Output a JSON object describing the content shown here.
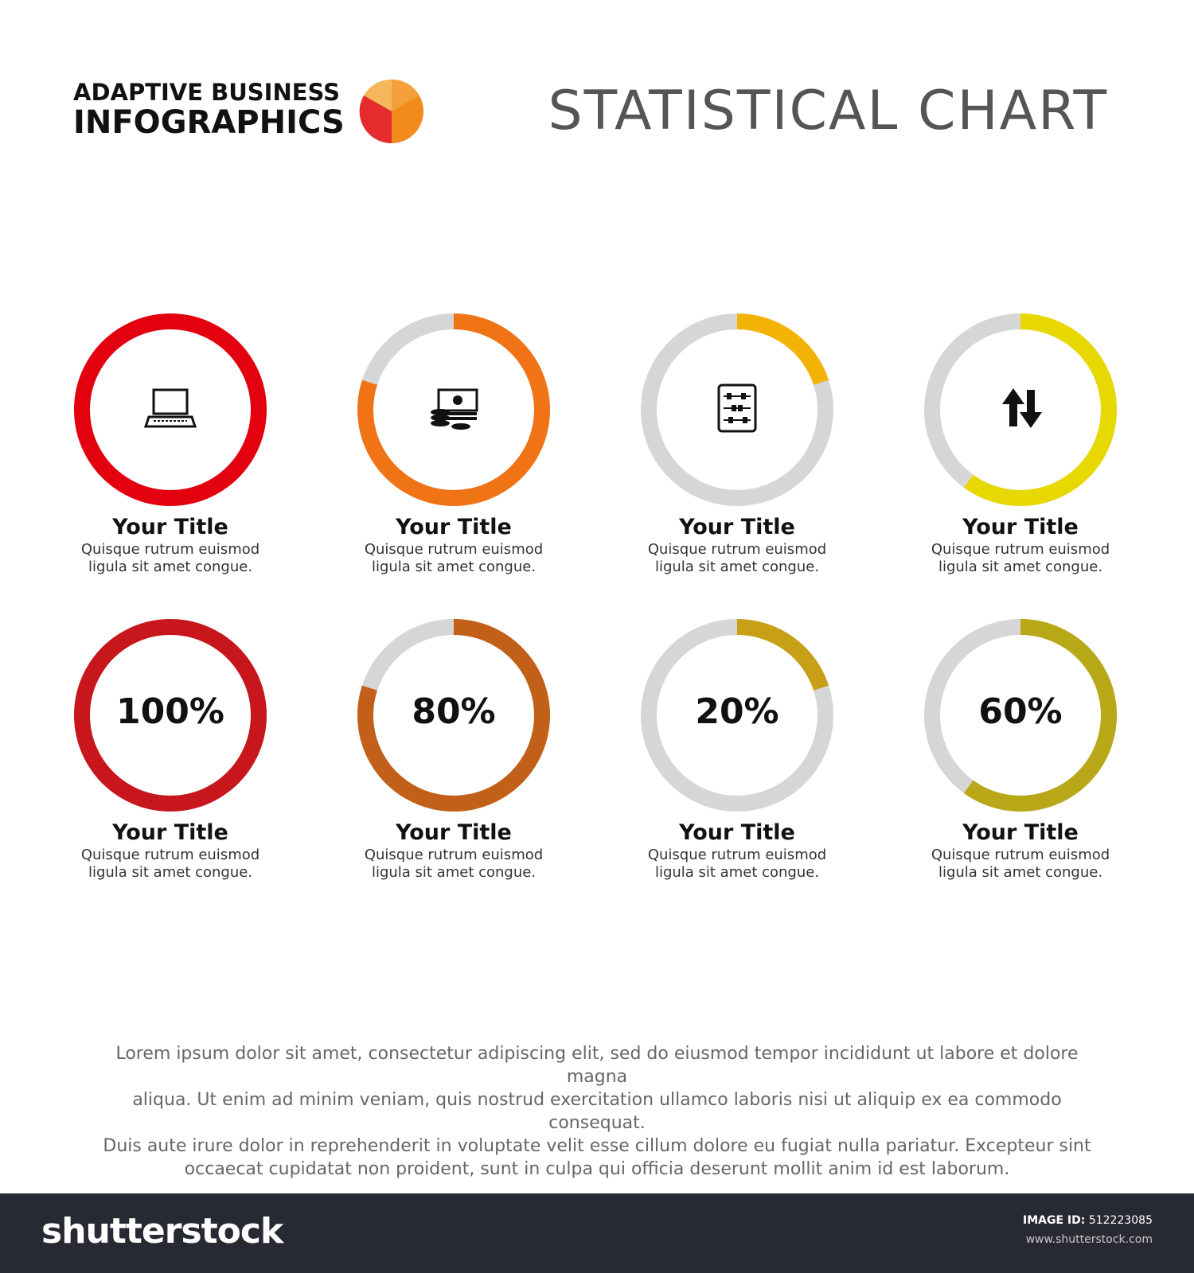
{
  "header": {
    "brand_line1": "ADAPTIVE BUSINESS",
    "brand_line2": "INFOGRAPHICS",
    "title": "STATISTICAL CHART"
  },
  "colors": {
    "track": "#d6d6d6",
    "row1": [
      "#e3000f",
      "#f07316",
      "#f2b305",
      "#e8d802"
    ],
    "row2": [
      "#c8161d",
      "#c2601a",
      "#c8a018",
      "#b8a818"
    ],
    "logo": [
      "#f4a03a",
      "#e52b2b",
      "#f28a1c"
    ]
  },
  "chart_data": [
    {
      "type": "pie",
      "title": "",
      "donut": true,
      "series": [
        {
          "values": [
            100,
            80,
            20,
            60
          ],
          "icons": [
            "laptop-icon",
            "money-icon",
            "abacus-icon",
            "up-down-arrows-icon"
          ]
        },
        {
          "values": [
            100,
            80,
            20,
            60
          ],
          "labels": [
            "100%",
            "80%",
            "20%",
            "60%"
          ]
        }
      ]
    }
  ],
  "cards_row1": [
    {
      "title": "Your Title",
      "desc1": "Quisque rutrum euismod",
      "desc2": "ligula sit amet congue."
    },
    {
      "title": "Your Title",
      "desc1": "Quisque rutrum euismod",
      "desc2": "ligula sit amet congue."
    },
    {
      "title": "Your Title",
      "desc1": "Quisque rutrum euismod",
      "desc2": "ligula sit amet congue."
    },
    {
      "title": "Your Title",
      "desc1": "Quisque rutrum euismod",
      "desc2": "ligula sit amet congue."
    }
  ],
  "cards_row2": [
    {
      "title": "Your Title",
      "desc1": "Quisque rutrum euismod",
      "desc2": "ligula sit amet congue.",
      "pct": "100%"
    },
    {
      "title": "Your Title",
      "desc1": "Quisque rutrum euismod",
      "desc2": "ligula sit amet congue.",
      "pct": "80%"
    },
    {
      "title": "Your Title",
      "desc1": "Quisque rutrum euismod",
      "desc2": "ligula sit amet congue.",
      "pct": "20%"
    },
    {
      "title": "Your Title",
      "desc1": "Quisque rutrum euismod",
      "desc2": "ligula sit amet congue.",
      "pct": "60%"
    }
  ],
  "footer": {
    "line1": "Lorem ipsum dolor sit amet, consectetur adipiscing elit, sed do eiusmod tempor incididunt ut labore et dolore magna",
    "line2": "aliqua. Ut enim ad minim veniam, quis nostrud exercitation ullamco laboris nisi ut aliquip ex ea commodo consequat.",
    "line3": "Duis aute irure dolor in reprehenderit in voluptate velit esse cillum dolore eu fugiat nulla pariatur. Excepteur sint",
    "line4": "occaecat cupidatat non proident, sunt in culpa qui officia deserunt mollit anim id est laborum."
  },
  "bottom_bar": {
    "logo": "shutterstock",
    "image_id_label": "IMAGE ID:",
    "image_id": "512223085",
    "url": "www.shutterstock.com"
  }
}
